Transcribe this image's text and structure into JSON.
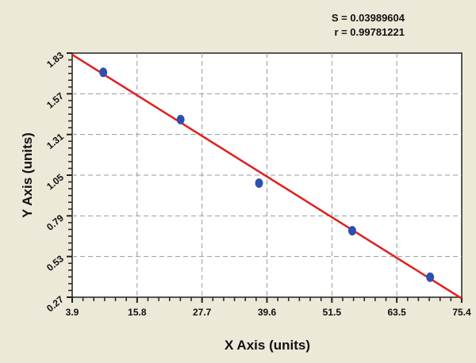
{
  "chart_data": {
    "type": "scatter",
    "title": "",
    "xlabel": "X Axis (units)",
    "ylabel": "Y Axis (units)",
    "xlim": [
      3.9,
      75.4
    ],
    "ylim": [
      0.27,
      1.83
    ],
    "xticks": [
      "3.9",
      "15.8",
      "27.7",
      "39.6",
      "51.5",
      "63.5",
      "75.4"
    ],
    "yticks": [
      "0.27",
      "0.53",
      "0.79",
      "1.05",
      "1.31",
      "1.57",
      "1.83"
    ],
    "grid": true,
    "series": [
      {
        "type": "scatter",
        "x": [
          9.6,
          23.8,
          38.2,
          55.3,
          69.6
        ],
        "y": [
          1.707,
          1.405,
          0.999,
          0.695,
          0.398
        ]
      },
      {
        "type": "line",
        "x": [
          3.9,
          75.4
        ],
        "y": [
          1.82,
          0.262
        ]
      }
    ],
    "annotations": [
      "S = 0.03989604",
      "r = 0.99781221"
    ],
    "colors": {
      "points": "#2f4fb0",
      "fit_line": "#e02020",
      "background": "#ece9d8",
      "plot": "#ffffff"
    }
  }
}
